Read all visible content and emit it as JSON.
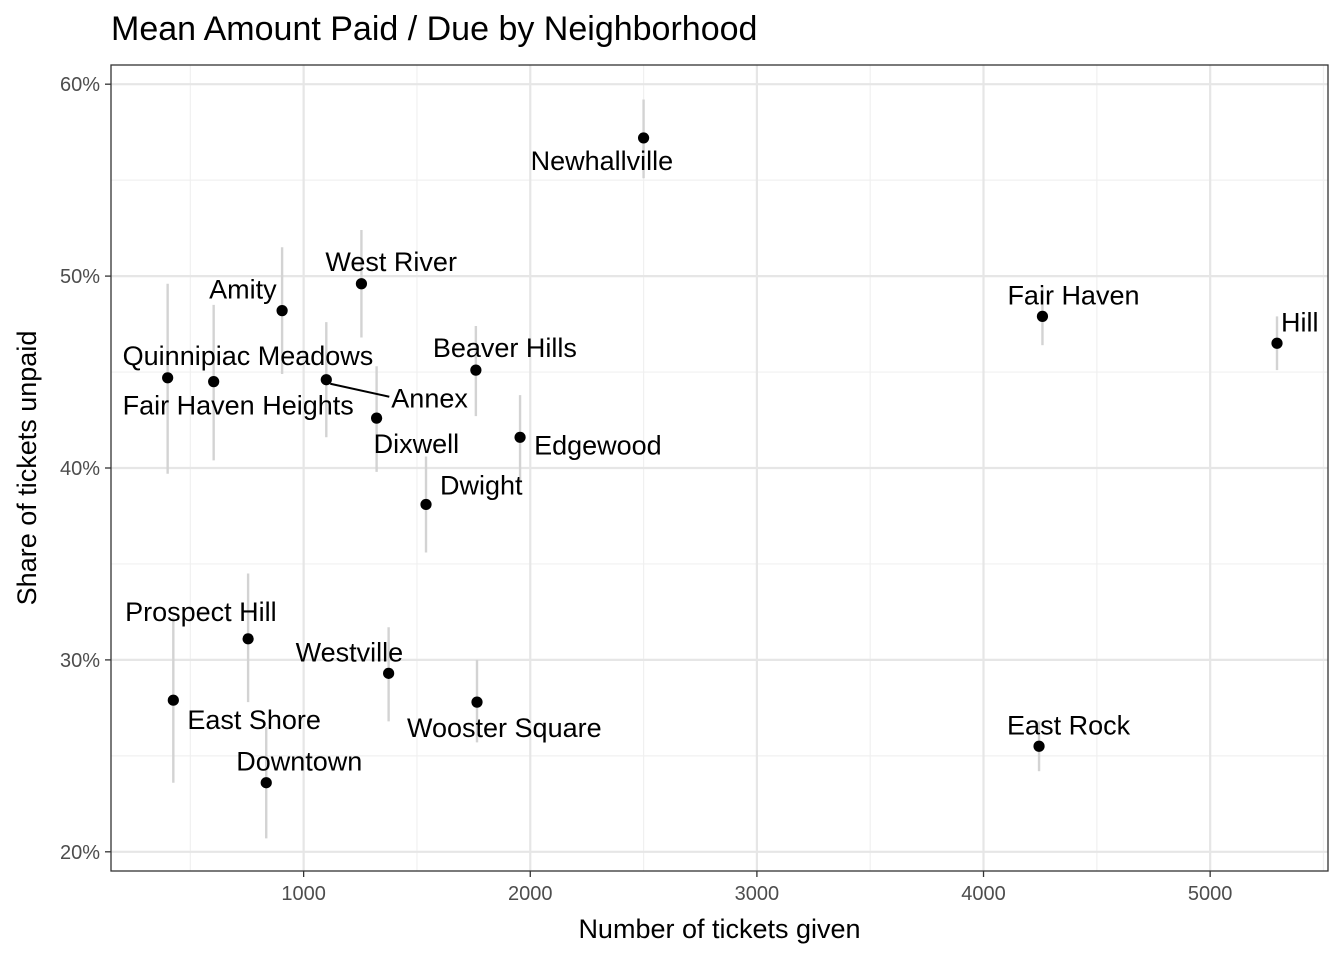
{
  "chart_data": {
    "type": "scatter",
    "title": "Mean Amount Paid / Due by Neighborhood",
    "xlabel": "Number of tickets given",
    "ylabel": "Share of tickets unpaid",
    "xlim": [
      150,
      5520
    ],
    "ylim": [
      0.19,
      0.61
    ],
    "x_ticks": [
      1000,
      2000,
      3000,
      4000,
      5000
    ],
    "x_tick_labels": [
      "1000",
      "2000",
      "3000",
      "4000",
      "5000"
    ],
    "y_ticks": [
      0.2,
      0.3,
      0.4,
      0.5,
      0.6
    ],
    "y_tick_labels": [
      "20%",
      "30%",
      "40%",
      "50%",
      "60%"
    ],
    "grid": true,
    "points": [
      {
        "name": "Newhallville",
        "x": 2500,
        "y": 0.572,
        "ylow": 0.551,
        "yhigh": 0.592
      },
      {
        "name": "West River",
        "x": 1255,
        "y": 0.496,
        "ylow": 0.468,
        "yhigh": 0.524
      },
      {
        "name": "Amity",
        "x": 905,
        "y": 0.482,
        "ylow": 0.449,
        "yhigh": 0.515
      },
      {
        "name": "Fair Haven",
        "x": 4260,
        "y": 0.479,
        "ylow": 0.464,
        "yhigh": 0.494
      },
      {
        "name": "Hill",
        "x": 5295,
        "y": 0.465,
        "ylow": 0.451,
        "yhigh": 0.479
      },
      {
        "name": "Quinnipiac Meadows",
        "x": 400,
        "y": 0.447,
        "ylow": 0.397,
        "yhigh": 0.496
      },
      {
        "name": "Fair Haven Heights",
        "x": 603,
        "y": 0.445,
        "ylow": 0.404,
        "yhigh": 0.485
      },
      {
        "name": "Annex",
        "x": 1100,
        "y": 0.446,
        "ylow": 0.416,
        "yhigh": 0.476
      },
      {
        "name": "Beaver Hills",
        "x": 1760,
        "y": 0.451,
        "ylow": 0.427,
        "yhigh": 0.474
      },
      {
        "name": "Dixwell",
        "x": 1322,
        "y": 0.426,
        "ylow": 0.398,
        "yhigh": 0.453
      },
      {
        "name": "Edgewood",
        "x": 1955,
        "y": 0.416,
        "ylow": 0.393,
        "yhigh": 0.438
      },
      {
        "name": "Dwight",
        "x": 1540,
        "y": 0.381,
        "ylow": 0.356,
        "yhigh": 0.406
      },
      {
        "name": "Prospect Hill",
        "x": 755,
        "y": 0.311,
        "ylow": 0.278,
        "yhigh": 0.345
      },
      {
        "name": "East Shore",
        "x": 425,
        "y": 0.279,
        "ylow": 0.236,
        "yhigh": 0.322
      },
      {
        "name": "Westville",
        "x": 1375,
        "y": 0.293,
        "ylow": 0.268,
        "yhigh": 0.317
      },
      {
        "name": "Wooster Square",
        "x": 1765,
        "y": 0.278,
        "ylow": 0.257,
        "yhigh": 0.3
      },
      {
        "name": "Downtown",
        "x": 835,
        "y": 0.236,
        "ylow": 0.207,
        "yhigh": 0.265
      },
      {
        "name": "East Rock",
        "x": 4245,
        "y": 0.255,
        "ylow": 0.242,
        "yhigh": 0.268
      }
    ]
  }
}
